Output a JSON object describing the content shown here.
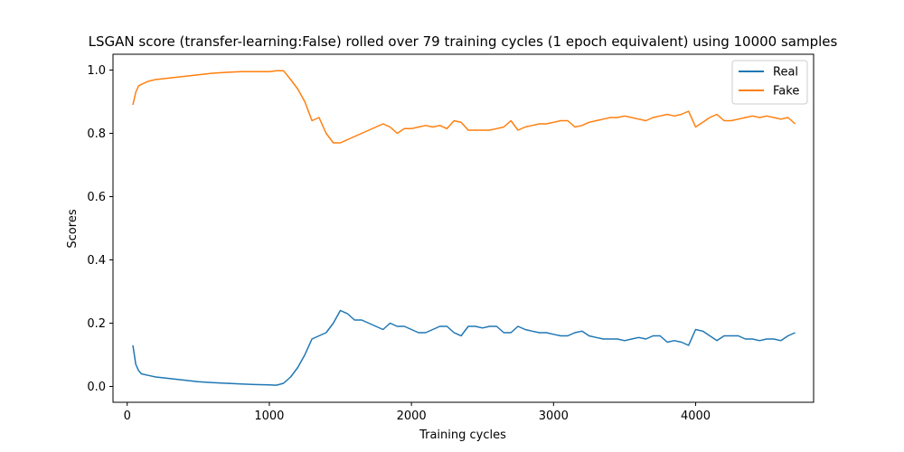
{
  "chart_data": {
    "type": "line",
    "title": "LSGAN score (transfer-learning:False) rolled over 79 training cycles (1 epoch equivalent) using 10000 samples",
    "xlabel": "Training cycles",
    "ylabel": "Scores",
    "xlim": [
      -100,
      4830
    ],
    "ylim": [
      -0.05,
      1.05
    ],
    "xticks": [
      0,
      1000,
      2000,
      3000,
      4000
    ],
    "yticks": [
      0.0,
      0.2,
      0.4,
      0.6,
      0.8,
      1.0
    ],
    "xtick_labels": [
      "0",
      "1000",
      "2000",
      "3000",
      "4000"
    ],
    "ytick_labels": [
      "0.0",
      "0.2",
      "0.4",
      "0.6",
      "0.8",
      "1.0"
    ],
    "grid": false,
    "legend": {
      "position": "top-right"
    },
    "series": [
      {
        "name": "Real",
        "color": "#1f77b4",
        "x": [
          40,
          60,
          80,
          100,
          150,
          200,
          300,
          400,
          500,
          600,
          700,
          800,
          900,
          1000,
          1050,
          1100,
          1150,
          1200,
          1250,
          1300,
          1350,
          1400,
          1450,
          1500,
          1550,
          1600,
          1650,
          1700,
          1750,
          1800,
          1850,
          1900,
          1950,
          2000,
          2050,
          2100,
          2150,
          2200,
          2250,
          2300,
          2350,
          2400,
          2450,
          2500,
          2550,
          2600,
          2650,
          2700,
          2750,
          2800,
          2850,
          2900,
          2950,
          3000,
          3050,
          3100,
          3150,
          3200,
          3250,
          3300,
          3350,
          3400,
          3450,
          3500,
          3550,
          3600,
          3650,
          3700,
          3750,
          3800,
          3850,
          3900,
          3950,
          4000,
          4050,
          4100,
          4150,
          4200,
          4250,
          4300,
          4350,
          4400,
          4450,
          4500,
          4550,
          4600,
          4650,
          4700
        ],
        "y": [
          0.13,
          0.07,
          0.05,
          0.04,
          0.035,
          0.03,
          0.025,
          0.02,
          0.015,
          0.012,
          0.01,
          0.008,
          0.006,
          0.005,
          0.004,
          0.01,
          0.03,
          0.06,
          0.1,
          0.15,
          0.16,
          0.17,
          0.2,
          0.24,
          0.23,
          0.21,
          0.21,
          0.2,
          0.19,
          0.18,
          0.2,
          0.19,
          0.19,
          0.18,
          0.17,
          0.17,
          0.18,
          0.19,
          0.19,
          0.17,
          0.16,
          0.19,
          0.19,
          0.185,
          0.19,
          0.19,
          0.17,
          0.17,
          0.19,
          0.18,
          0.175,
          0.17,
          0.17,
          0.165,
          0.16,
          0.16,
          0.17,
          0.175,
          0.16,
          0.155,
          0.15,
          0.15,
          0.15,
          0.145,
          0.15,
          0.155,
          0.15,
          0.16,
          0.16,
          0.14,
          0.145,
          0.14,
          0.13,
          0.18,
          0.175,
          0.16,
          0.145,
          0.16,
          0.16,
          0.16,
          0.15,
          0.15,
          0.145,
          0.15,
          0.15,
          0.145,
          0.16,
          0.17
        ]
      },
      {
        "name": "Fake",
        "color": "#ff7f0e",
        "x": [
          40,
          60,
          80,
          100,
          150,
          200,
          300,
          400,
          500,
          600,
          700,
          800,
          900,
          1000,
          1050,
          1100,
          1150,
          1200,
          1250,
          1300,
          1350,
          1400,
          1450,
          1500,
          1550,
          1600,
          1650,
          1700,
          1750,
          1800,
          1850,
          1900,
          1950,
          2000,
          2050,
          2100,
          2150,
          2200,
          2250,
          2300,
          2350,
          2400,
          2450,
          2500,
          2550,
          2600,
          2650,
          2700,
          2750,
          2800,
          2850,
          2900,
          2950,
          3000,
          3050,
          3100,
          3150,
          3200,
          3250,
          3300,
          3350,
          3400,
          3450,
          3500,
          3550,
          3600,
          3650,
          3700,
          3750,
          3800,
          3850,
          3900,
          3950,
          4000,
          4050,
          4100,
          4150,
          4200,
          4250,
          4300,
          4350,
          4400,
          4450,
          4500,
          4550,
          4600,
          4650,
          4700
        ],
        "y": [
          0.89,
          0.93,
          0.95,
          0.955,
          0.965,
          0.97,
          0.975,
          0.98,
          0.985,
          0.99,
          0.993,
          0.995,
          0.995,
          0.995,
          0.998,
          0.998,
          0.97,
          0.94,
          0.9,
          0.84,
          0.85,
          0.8,
          0.77,
          0.77,
          0.78,
          0.79,
          0.8,
          0.81,
          0.82,
          0.83,
          0.82,
          0.8,
          0.815,
          0.815,
          0.82,
          0.825,
          0.82,
          0.825,
          0.815,
          0.84,
          0.835,
          0.81,
          0.81,
          0.81,
          0.81,
          0.815,
          0.82,
          0.84,
          0.81,
          0.82,
          0.825,
          0.83,
          0.83,
          0.835,
          0.84,
          0.84,
          0.82,
          0.825,
          0.835,
          0.84,
          0.845,
          0.85,
          0.85,
          0.855,
          0.85,
          0.845,
          0.84,
          0.85,
          0.855,
          0.86,
          0.855,
          0.86,
          0.87,
          0.82,
          0.835,
          0.85,
          0.86,
          0.84,
          0.84,
          0.845,
          0.85,
          0.855,
          0.85,
          0.855,
          0.85,
          0.845,
          0.85,
          0.83
        ]
      }
    ]
  }
}
